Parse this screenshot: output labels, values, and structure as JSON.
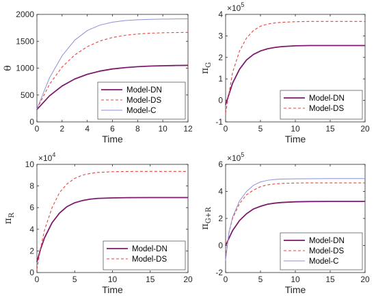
{
  "chart_data": [
    {
      "type": "line",
      "xlabel": "Time",
      "ylabel": "θ",
      "ylabel_sub": "",
      "xlim": [
        0,
        12
      ],
      "ylim": [
        0,
        2000
      ],
      "xticks": [
        "0",
        "2",
        "4",
        "6",
        "8",
        "10",
        "12"
      ],
      "yticks": [
        "0",
        "500",
        "1000",
        "1500",
        "2000"
      ],
      "exponent": "",
      "legend": "bottom-right",
      "grid": false,
      "series": [
        {
          "name": "Model-DN",
          "color": "#7b1a6e",
          "style": "solid",
          "x": [
            0,
            1,
            2,
            3,
            4,
            5,
            6,
            7,
            8,
            9,
            10,
            11,
            12
          ],
          "values": [
            230,
            485,
            668,
            798,
            885,
            945,
            985,
            1010,
            1027,
            1038,
            1045,
            1049,
            1052
          ]
        },
        {
          "name": "Model-DS",
          "color": "#e8413c",
          "style": "dashed",
          "x": [
            0,
            1,
            2,
            3,
            4,
            5,
            6,
            7,
            8,
            9,
            10,
            11,
            12
          ],
          "values": [
            240,
            700,
            1020,
            1245,
            1400,
            1505,
            1570,
            1610,
            1635,
            1650,
            1658,
            1662,
            1665
          ]
        },
        {
          "name": "Model-C",
          "color": "#8b8fd8",
          "style": "solid",
          "x": [
            0,
            1,
            2,
            3,
            4,
            5,
            6,
            7,
            8,
            9,
            10,
            11,
            12
          ],
          "values": [
            240,
            820,
            1230,
            1520,
            1700,
            1800,
            1855,
            1885,
            1900,
            1908,
            1912,
            1915,
            1917
          ]
        }
      ]
    },
    {
      "type": "line",
      "xlabel": "Time",
      "ylabel": "π",
      "ylabel_sub": "G",
      "xlim": [
        0,
        20
      ],
      "ylim": [
        -1,
        4
      ],
      "xticks": [
        "0",
        "5",
        "10",
        "15",
        "20"
      ],
      "yticks": [
        "-1",
        "0",
        "1",
        "2",
        "3",
        "4"
      ],
      "exponent": "5",
      "legend": "bottom-right",
      "grid": false,
      "series": [
        {
          "name": "Model-DN",
          "color": "#7b1a6e",
          "style": "solid",
          "x": [
            0,
            1,
            2,
            3,
            4,
            5,
            6,
            7,
            8,
            10,
            12,
            15,
            20
          ],
          "values": [
            -0.2,
            0.8,
            1.45,
            1.88,
            2.14,
            2.3,
            2.4,
            2.46,
            2.5,
            2.54,
            2.55,
            2.55,
            2.55
          ]
        },
        {
          "name": "Model-DS",
          "color": "#e8413c",
          "style": "dashed",
          "x": [
            0,
            1,
            2,
            3,
            4,
            5,
            6,
            7,
            8,
            10,
            12,
            15,
            20
          ],
          "values": [
            -0.6,
            1.3,
            2.3,
            2.9,
            3.25,
            3.45,
            3.55,
            3.6,
            3.63,
            3.66,
            3.67,
            3.67,
            3.67
          ]
        }
      ]
    },
    {
      "type": "line",
      "xlabel": "Time",
      "ylabel": "π",
      "ylabel_sub": "R",
      "xlim": [
        0,
        20
      ],
      "ylim": [
        0,
        10
      ],
      "xticks": [
        "0",
        "5",
        "10",
        "15",
        "20"
      ],
      "yticks": [
        "0",
        "2",
        "4",
        "6",
        "8",
        "10"
      ],
      "exponent": "4",
      "legend": "bottom-right",
      "grid": false,
      "series": [
        {
          "name": "Model-DN",
          "color": "#7b1a6e",
          "style": "solid",
          "x": [
            0,
            0.5,
            1,
            2,
            3,
            4,
            5,
            6,
            7,
            8,
            10,
            12,
            15,
            20
          ],
          "values": [
            1.0,
            2.2,
            3.2,
            4.6,
            5.5,
            6.1,
            6.45,
            6.65,
            6.78,
            6.85,
            6.9,
            6.92,
            6.93,
            6.93
          ]
        },
        {
          "name": "Model-DS",
          "color": "#e8413c",
          "style": "dashed",
          "x": [
            0,
            0.5,
            1,
            2,
            3,
            4,
            5,
            6,
            7,
            8,
            10,
            12,
            15,
            20
          ],
          "values": [
            0.3,
            2.3,
            3.9,
            6.0,
            7.4,
            8.2,
            8.7,
            9.0,
            9.15,
            9.25,
            9.32,
            9.34,
            9.35,
            9.35
          ]
        }
      ]
    },
    {
      "type": "line",
      "xlabel": "Time",
      "ylabel": "π",
      "ylabel_sub": "G+R",
      "xlim": [
        0,
        20
      ],
      "ylim": [
        -2,
        6
      ],
      "xticks": [
        "0",
        "5",
        "10",
        "15",
        "20"
      ],
      "yticks": [
        "-2",
        "0",
        "2",
        "4",
        "6"
      ],
      "exponent": "5",
      "legend": "bottom-right",
      "grid": false,
      "series": [
        {
          "name": "Model-DN",
          "color": "#7b1a6e",
          "style": "solid",
          "x": [
            0,
            1,
            2,
            3,
            4,
            5,
            6,
            7,
            8,
            10,
            12,
            15,
            20
          ],
          "values": [
            0.0,
            1.1,
            1.85,
            2.35,
            2.7,
            2.9,
            3.05,
            3.13,
            3.18,
            3.23,
            3.25,
            3.26,
            3.26
          ]
        },
        {
          "name": "Model-DS",
          "color": "#e8413c",
          "style": "dashed",
          "x": [
            0,
            0.5,
            1,
            2,
            3,
            4,
            5,
            6,
            7,
            8,
            10,
            12,
            15,
            20
          ],
          "values": [
            -0.9,
            1.0,
            2.0,
            3.1,
            3.75,
            4.1,
            4.35,
            4.48,
            4.55,
            4.59,
            4.62,
            4.63,
            4.63,
            4.63
          ]
        },
        {
          "name": "Model-C",
          "color": "#8b8fd8",
          "style": "solid",
          "x": [
            0,
            0.5,
            1,
            2,
            3,
            4,
            5,
            6,
            7,
            8,
            10,
            12,
            15,
            20
          ],
          "values": [
            -1.1,
            1.0,
            2.1,
            3.3,
            4.0,
            4.45,
            4.7,
            4.82,
            4.88,
            4.91,
            4.93,
            4.94,
            4.95,
            4.95
          ]
        }
      ]
    }
  ]
}
